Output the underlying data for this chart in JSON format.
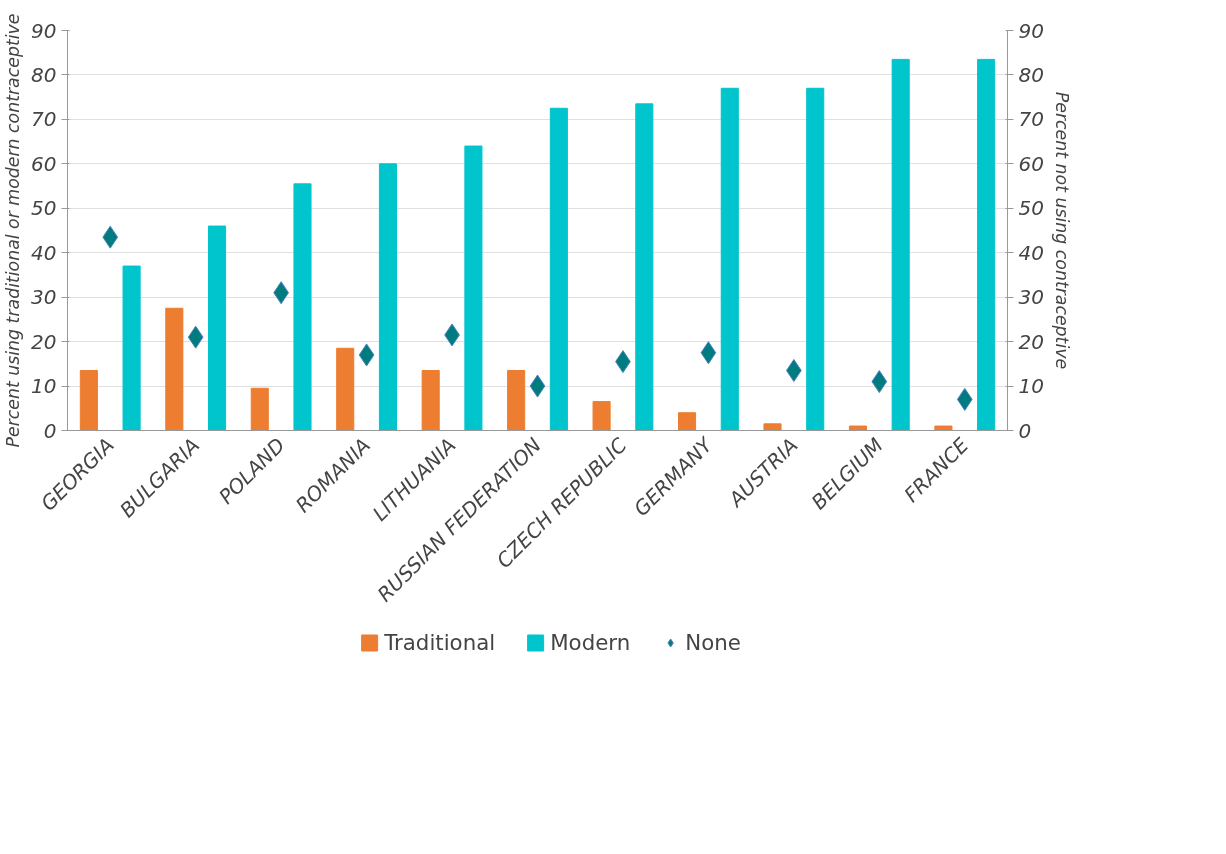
{
  "chart_data": {
    "type": "bar",
    "categories": [
      "GEORGIA",
      "BULGARIA",
      "POLAND",
      "ROMANIA",
      "LITHUANIA",
      "RUSSIAN FEDERATION",
      "CZECH REPUBLIC",
      "GERMANY",
      "AUSTRIA",
      "BELGIUM",
      "FRANCE"
    ],
    "ylabel": "Percent using traditional or modern contraceptive",
    "y2label": "Percent not using contraceptive",
    "ylim": [
      0,
      90
    ],
    "yticks": [
      0,
      10,
      20,
      30,
      40,
      50,
      60,
      70,
      80,
      90
    ],
    "y2lim": [
      0,
      90
    ],
    "y2ticks": [
      0,
      10,
      20,
      30,
      40,
      50,
      60,
      70,
      80,
      90
    ],
    "grid": "y",
    "legend": "bottom",
    "marker": "diamond",
    "series": [
      {
        "name": "Traditional",
        "color": "#ed7d31",
        "values": [
          13.5,
          27.5,
          9.5,
          18.5,
          13.5,
          13.5,
          6.5,
          4,
          1.5,
          1,
          1
        ]
      },
      {
        "name": "Modern",
        "color": "#00c5cc",
        "values": [
          37,
          46,
          55.5,
          60,
          64,
          72.5,
          73.5,
          77,
          77,
          83.5,
          83.5
        ]
      },
      {
        "name": "None",
        "type": "scatter",
        "axis": "y2",
        "color": "#007b7f",
        "values": [
          43.5,
          21,
          31,
          17,
          21.5,
          10,
          15.5,
          17.5,
          13.5,
          11,
          7
        ]
      }
    ]
  }
}
